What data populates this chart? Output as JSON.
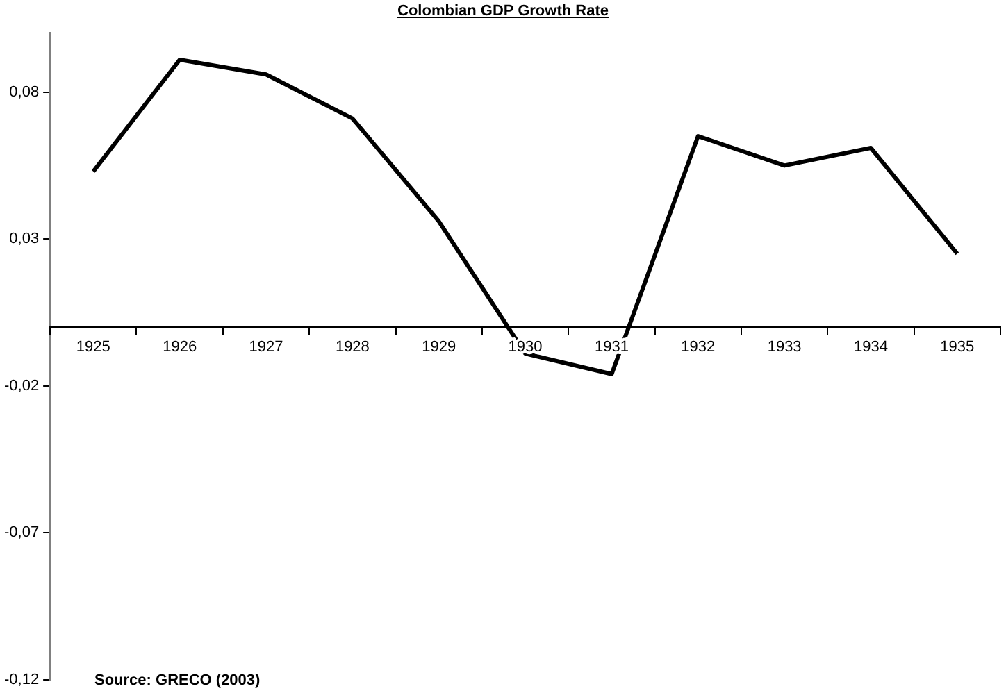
{
  "chart_data": {
    "type": "line",
    "title": "Colombian GDP Growth Rate",
    "categories": [
      "1925",
      "1926",
      "1927",
      "1928",
      "1929",
      "1930",
      "1931",
      "1932",
      "1933",
      "1934",
      "1935"
    ],
    "series": [
      {
        "color": "#000000",
        "values": [
          0.053,
          0.091,
          0.086,
          0.071,
          0.036,
          -0.009,
          -0.016,
          0.065,
          0.055,
          0.061,
          0.025
        ]
      }
    ],
    "ylim": [
      -0.12,
      0.1
    ],
    "yticks": [
      {
        "value": -0.12,
        "label": "-0,12"
      },
      {
        "value": -0.07,
        "label": "-0,07"
      },
      {
        "value": -0.02,
        "label": "-0,02"
      },
      {
        "value": 0.03,
        "label": "0,03"
      },
      {
        "value": 0.08,
        "label": "0,08"
      }
    ],
    "annotations": [
      "Source: GRECO (2003)"
    ]
  }
}
